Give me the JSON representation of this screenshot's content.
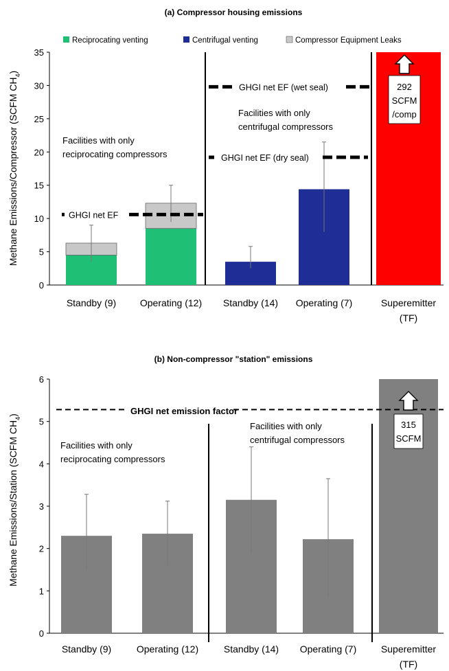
{
  "chart_data": [
    {
      "type": "bar",
      "stacked": true,
      "title": "(a) Compressor housing emissions",
      "ylabel": "Methane Emissions/Compressor (SCFM CH",
      "ylabel_sub": "4",
      "ylabel_close": ")",
      "ylim": [
        0,
        35
      ],
      "yticks": [
        0,
        5,
        10,
        15,
        20,
        25,
        30,
        35
      ],
      "categories": [
        "Standby (9)",
        "Operating (12)",
        "Standby (14)",
        "Operating (7)",
        "Superemitter"
      ],
      "category_second_line": [
        "",
        "",
        "",
        "",
        "(TF)"
      ],
      "series": [
        {
          "name": "Reciprocating venting",
          "color": "#1fbf75",
          "values": [
            4.5,
            8.5,
            0,
            0,
            0
          ]
        },
        {
          "name": "Centrifugal venting",
          "color": "#1f2d96",
          "values": [
            0,
            0,
            3.5,
            14.4,
            0
          ]
        },
        {
          "name": "Compressor Equipment Leaks",
          "color": "#c8c8c8",
          "values": [
            1.8,
            3.8,
            0,
            0,
            0
          ]
        },
        {
          "name": "",
          "color": "#ff0000",
          "values": [
            0,
            0,
            0,
            0,
            35
          ]
        }
      ],
      "error_bars": [
        {
          "low": 3.5,
          "high": 9.0
        },
        {
          "low": 9.5,
          "high": 15.0
        },
        {
          "low": 2.5,
          "high": 5.8
        },
        {
          "low": 8.0,
          "high": 21.5
        },
        null
      ],
      "reference_lines": [
        {
          "label": "GHGI net EF",
          "value": 10.6,
          "from": 0,
          "to": 1
        },
        {
          "label": "GHGI net EF (wet seal)",
          "value": 29.8,
          "from": 2,
          "to": 3
        },
        {
          "label": "GHGI net EF (dry seal)",
          "value": 19.2,
          "from": 2,
          "to": 3
        }
      ],
      "annotations": [
        {
          "lines": [
            "Facilities with only",
            "reciprocating compressors"
          ]
        },
        {
          "lines": [
            "Facilities with only",
            "centrifugal compressors"
          ]
        }
      ],
      "callout": [
        "292",
        "SCFM",
        "/comp"
      ],
      "legend_placement": "top"
    },
    {
      "type": "bar",
      "title": "(b) Non-compressor \"station\" emissions",
      "ylabel": "Methane Emissions/Station (SCFM CH",
      "ylabel_sub": "4",
      "ylabel_close": ")",
      "ylim": [
        0,
        6
      ],
      "yticks": [
        0,
        1,
        2,
        3,
        4,
        5,
        6
      ],
      "categories": [
        "Standby (9)",
        "Operating (12)",
        "Standby (14)",
        "Operating (7)",
        "Superemitter"
      ],
      "category_second_line": [
        "",
        "",
        "",
        "",
        "(TF)"
      ],
      "values": [
        2.3,
        2.35,
        3.15,
        2.22,
        6
      ],
      "bar_color": "#808080",
      "error_bars": [
        {
          "low": 1.5,
          "high": 3.28
        },
        {
          "low": 1.6,
          "high": 3.12
        },
        {
          "low": 1.9,
          "high": 4.4
        },
        {
          "low": 0.85,
          "high": 3.65
        },
        null
      ],
      "reference_lines": [
        {
          "label": "GHGI net emission factor",
          "value": 5.28,
          "from": 0,
          "to": 4
        }
      ],
      "annotations": [
        {
          "lines": [
            "Facilities with only",
            "reciprocating compressors"
          ]
        },
        {
          "lines": [
            "Facilities with only",
            "centrifugal compressors"
          ]
        }
      ],
      "callout": [
        "315",
        "SCFM"
      ]
    }
  ]
}
